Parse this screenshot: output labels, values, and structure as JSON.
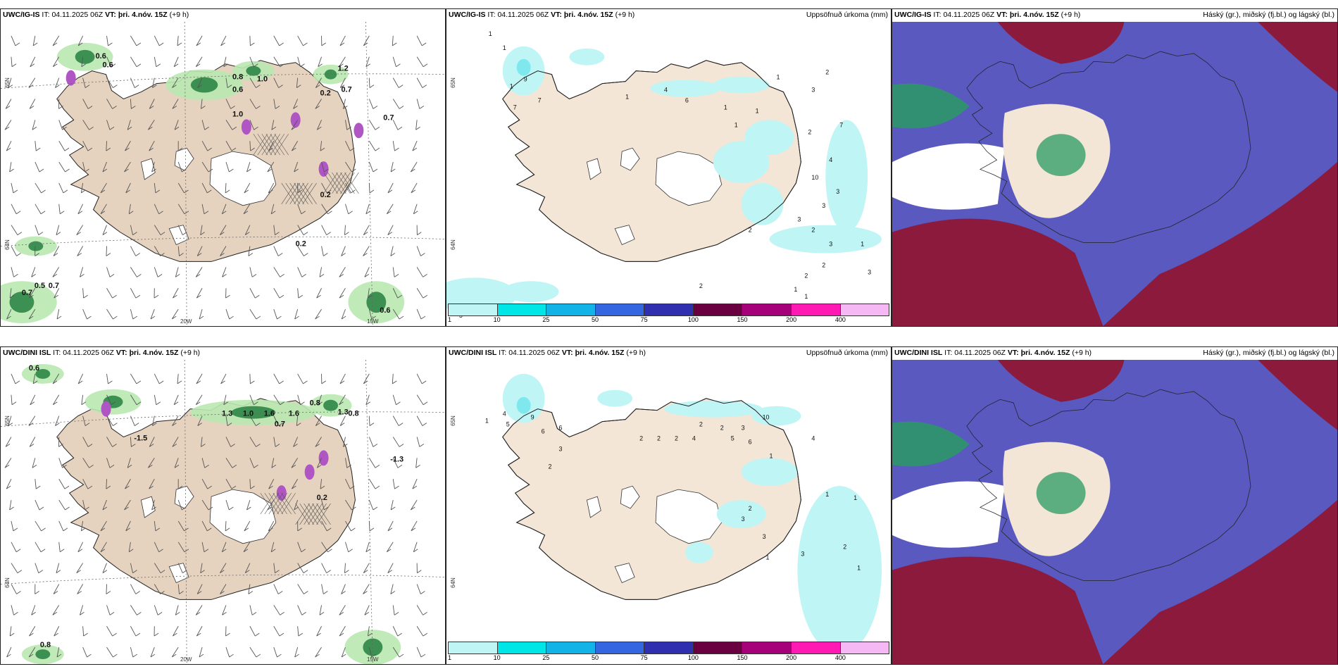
{
  "panels": [
    {
      "model": "UWC/IG-IS",
      "it_label": "IT:",
      "it_value": "04.11.2025 06Z",
      "vt_label": "VT:",
      "vt_value": "þri. 4.nóv. 15Z",
      "lead": "(+9 h)",
      "right_title": "",
      "type": "wind",
      "axis": {
        "lat1": "65N",
        "lat2": "64N",
        "lon1": "20W",
        "lon2": "15W"
      },
      "values": [
        "0.6",
        "0.6",
        "0.8",
        "1.0",
        "0.6",
        "1.2",
        "0.7",
        "0.2",
        "1.0",
        "0.7",
        "0.2",
        "0.7",
        "0.5",
        "0.7",
        "0.2",
        "0.6"
      ]
    },
    {
      "model": "UWC/IG-IS",
      "it_label": "IT:",
      "it_value": "04.11.2025 06Z",
      "vt_label": "VT:",
      "vt_value": "þri. 4.nóv. 15Z",
      "lead": "(+9 h)",
      "right_title": "Uppsöfnuð úrkoma (mm)",
      "type": "precip",
      "axis": {
        "lat1": "65N",
        "lat2": "64N",
        "lon1": "",
        "lon2": ""
      },
      "values": [
        "1",
        "1",
        "1",
        "7",
        "9",
        "7",
        "1",
        "4",
        "6",
        "1",
        "1",
        "1",
        "1",
        "2",
        "3",
        "2",
        "7",
        "4",
        "10",
        "3",
        "3",
        "3",
        "2",
        "2",
        "1",
        "3",
        "3",
        "2",
        "2",
        "1",
        "1",
        "2",
        "5"
      ]
    },
    {
      "model": "UWC/IG-IS",
      "it_label": "IT:",
      "it_value": "04.11.2025 06Z",
      "vt_label": "VT:",
      "vt_value": "þri. 4.nóv. 15Z",
      "lead": "(+9 h)",
      "right_title": "Háský (gr.), miðský (fj.bl.) og lágský (bl.)",
      "type": "cloud",
      "axis": {
        "lat1": "",
        "lat2": "",
        "lon1": "",
        "lon2": ""
      },
      "values": []
    },
    {
      "model": "UWC/DINI ISL",
      "it_label": "IT:",
      "it_value": "04.11.2025 06Z",
      "vt_label": "VT:",
      "vt_value": "þri. 4.nóv. 15Z",
      "lead": "(+9 h)",
      "right_title": "",
      "type": "wind",
      "axis": {
        "lat1": "65N",
        "lat2": "64N",
        "lon1": "20W",
        "lon2": "15W"
      },
      "values": [
        "0.6",
        "1.6",
        "1.3",
        "1.0",
        "1.6",
        "0.8",
        "1.3",
        "0.8",
        "0.7",
        "-1.5",
        "-1.3",
        "0.2",
        "0.8"
      ]
    },
    {
      "model": "UWC/DINI ISL",
      "it_label": "IT:",
      "it_value": "04.11.2025 06Z",
      "vt_label": "VT:",
      "vt_value": "þri. 4.nóv. 15Z",
      "lead": "(+9 h)",
      "right_title": "Uppsöfnuð úrkoma (mm)",
      "type": "precip",
      "axis": {
        "lat1": "65N",
        "lat2": "64N",
        "lon1": "",
        "lon2": ""
      },
      "values": [
        "1",
        "4",
        "5",
        "9",
        "6",
        "6",
        "3",
        "2",
        "2",
        "2",
        "2",
        "4",
        "2",
        "2",
        "3",
        "6",
        "5",
        "10",
        "4",
        "1",
        "1",
        "2",
        "3",
        "3",
        "2",
        "1",
        "1",
        "3",
        "1"
      ]
    },
    {
      "model": "UWC/DINI ISL",
      "it_label": "IT:",
      "it_value": "04.11.2025 06Z",
      "vt_label": "VT:",
      "vt_value": "þri. 4.nóv. 15Z",
      "lead": "(+9 h)",
      "right_title": "Háský (gr.), miðský (fj.bl.) og lágský (bl.)",
      "type": "cloud",
      "axis": {
        "lat1": "",
        "lat2": "",
        "lon1": "",
        "lon2": ""
      },
      "values": []
    }
  ],
  "colorbar": {
    "colors": [
      "#bff5f5",
      "#00e5e5",
      "#12b4e8",
      "#3366e0",
      "#2f2fb0",
      "#6a0040",
      "#a6007a",
      "#ff1ab3",
      "#f5b8f5"
    ],
    "ticks": [
      "1",
      "10",
      "25",
      "50",
      "75",
      "100",
      "150",
      "200",
      "400"
    ]
  },
  "colors": {
    "land": "#f3e6d6",
    "land_dark": "#e6d3bf",
    "precip_light": "#bff5f5",
    "precip_mid": "#7ee8ee",
    "green_light": "#b9e8b0",
    "green_dark": "#1a7a38",
    "purple": "#b055c4",
    "cloud_high": "#8b1a3d",
    "cloud_mid": "#5959c0",
    "cloud_low": "#2a9a63",
    "ice": "#ffffff"
  }
}
